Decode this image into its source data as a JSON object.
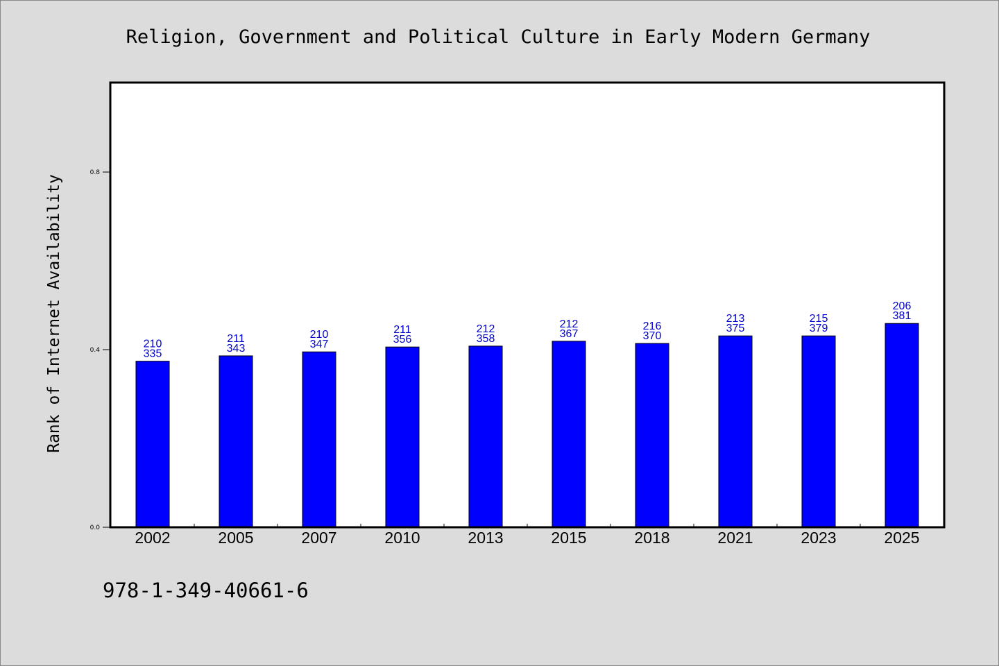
{
  "chart_data": {
    "type": "bar",
    "title": "Religion, Government and Political Culture in Early Modern Germany",
    "ylabel": "Rank of Internet Availability",
    "xlabel": "",
    "categories": [
      "2002",
      "2005",
      "2007",
      "2010",
      "2013",
      "2015",
      "2018",
      "2021",
      "2023",
      "2025"
    ],
    "values": [
      0.374,
      0.386,
      0.395,
      0.406,
      0.408,
      0.419,
      0.414,
      0.431,
      0.431,
      0.459
    ],
    "label_line1": [
      "210",
      "211",
      "210",
      "211",
      "212",
      "212",
      "216",
      "213",
      "215",
      "206"
    ],
    "label_line2": [
      "335",
      "343",
      "347",
      "356",
      "358",
      "367",
      "370",
      "375",
      "379",
      "381"
    ],
    "ylim": [
      0,
      1.0
    ],
    "yticks": [
      0.0,
      0.4,
      0.8
    ],
    "ytick_labels": [
      "0.0",
      "0.4",
      "0.8"
    ],
    "grid": false,
    "bar_color": "#0000ff",
    "label_color": "#0000cc",
    "background_color": "#dcdcdc",
    "plot_background": "#ffffff"
  },
  "footer": {
    "isbn": "978-1-349-40661-6"
  }
}
